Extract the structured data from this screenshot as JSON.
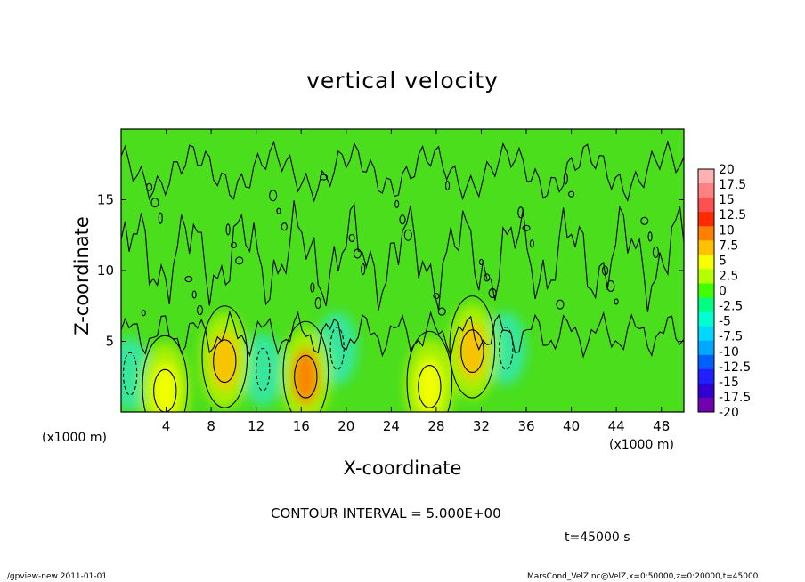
{
  "title": "vertical velocity",
  "contour_info": "CONTOUR INTERVAL = 5.000E+00",
  "time_label": "t=45000 s",
  "footer_left": "./gpview-new   2011-01-01",
  "footer_right": "MarsCond_VelZ.nc@VelZ,x=0:50000,z=0:20000,t=45000",
  "chart_data": {
    "type": "heatmap",
    "title": "vertical velocity",
    "xlabel": "X-coordinate",
    "ylabel": "Z-coordinate",
    "x_unit": "(x1000 m)",
    "xlim": [
      0,
      50
    ],
    "ylim": [
      0,
      20
    ],
    "x_ticks": [
      "4",
      "8",
      "12",
      "16",
      "20",
      "24",
      "28",
      "32",
      "36",
      "40",
      "44",
      "48"
    ],
    "x_tick_values": [
      4,
      8,
      12,
      16,
      20,
      24,
      28,
      32,
      36,
      40,
      44,
      48
    ],
    "y_ticks": [
      "5",
      "10",
      "15"
    ],
    "y_tick_values": [
      5,
      10,
      15
    ],
    "contour_interval": 5,
    "colorbar": {
      "labels": [
        "20",
        "17.5",
        "15",
        "12.5",
        "10",
        "7.5",
        "5",
        "2.5",
        "0",
        "-2.5",
        "-5",
        "-7.5",
        "-10",
        "-12.5",
        "-15",
        "-17.5",
        "-20"
      ],
      "values": [
        20,
        17.5,
        15,
        12.5,
        10,
        7.5,
        5,
        2.5,
        0,
        -2.5,
        -5,
        -7.5,
        -10,
        -12.5,
        -15,
        -17.5,
        -20
      ],
      "colors": [
        "#ffb0b0",
        "#ff8080",
        "#ff5050",
        "#ff2a00",
        "#ff8000",
        "#ffc000",
        "#f5ff00",
        "#b4ff00",
        "#40ff00",
        "#00ff80",
        "#00ffd0",
        "#00d8ff",
        "#00a8ff",
        "#0060ff",
        "#2020ff",
        "#3000d0",
        "#7000b0"
      ]
    },
    "updraft_cores": [
      {
        "x": 3.9,
        "z": 1.5,
        "w": 5.5
      },
      {
        "x": 9.2,
        "z": 3.6,
        "w": 8.5
      },
      {
        "x": 16.4,
        "z": 2.5,
        "w": 9
      },
      {
        "x": 31.2,
        "z": 4.3,
        "w": 8.5
      },
      {
        "x": 27.4,
        "z": 1.8,
        "w": 4
      }
    ],
    "downdraft_regions": [
      {
        "x": 0.8,
        "z": 2.7,
        "w": -6
      },
      {
        "x": 12.6,
        "z": 3.0,
        "w": -6
      },
      {
        "x": 19.2,
        "z": 4.5,
        "w": -5
      },
      {
        "x": 34.2,
        "z": 4.5,
        "w": -5
      }
    ]
  }
}
